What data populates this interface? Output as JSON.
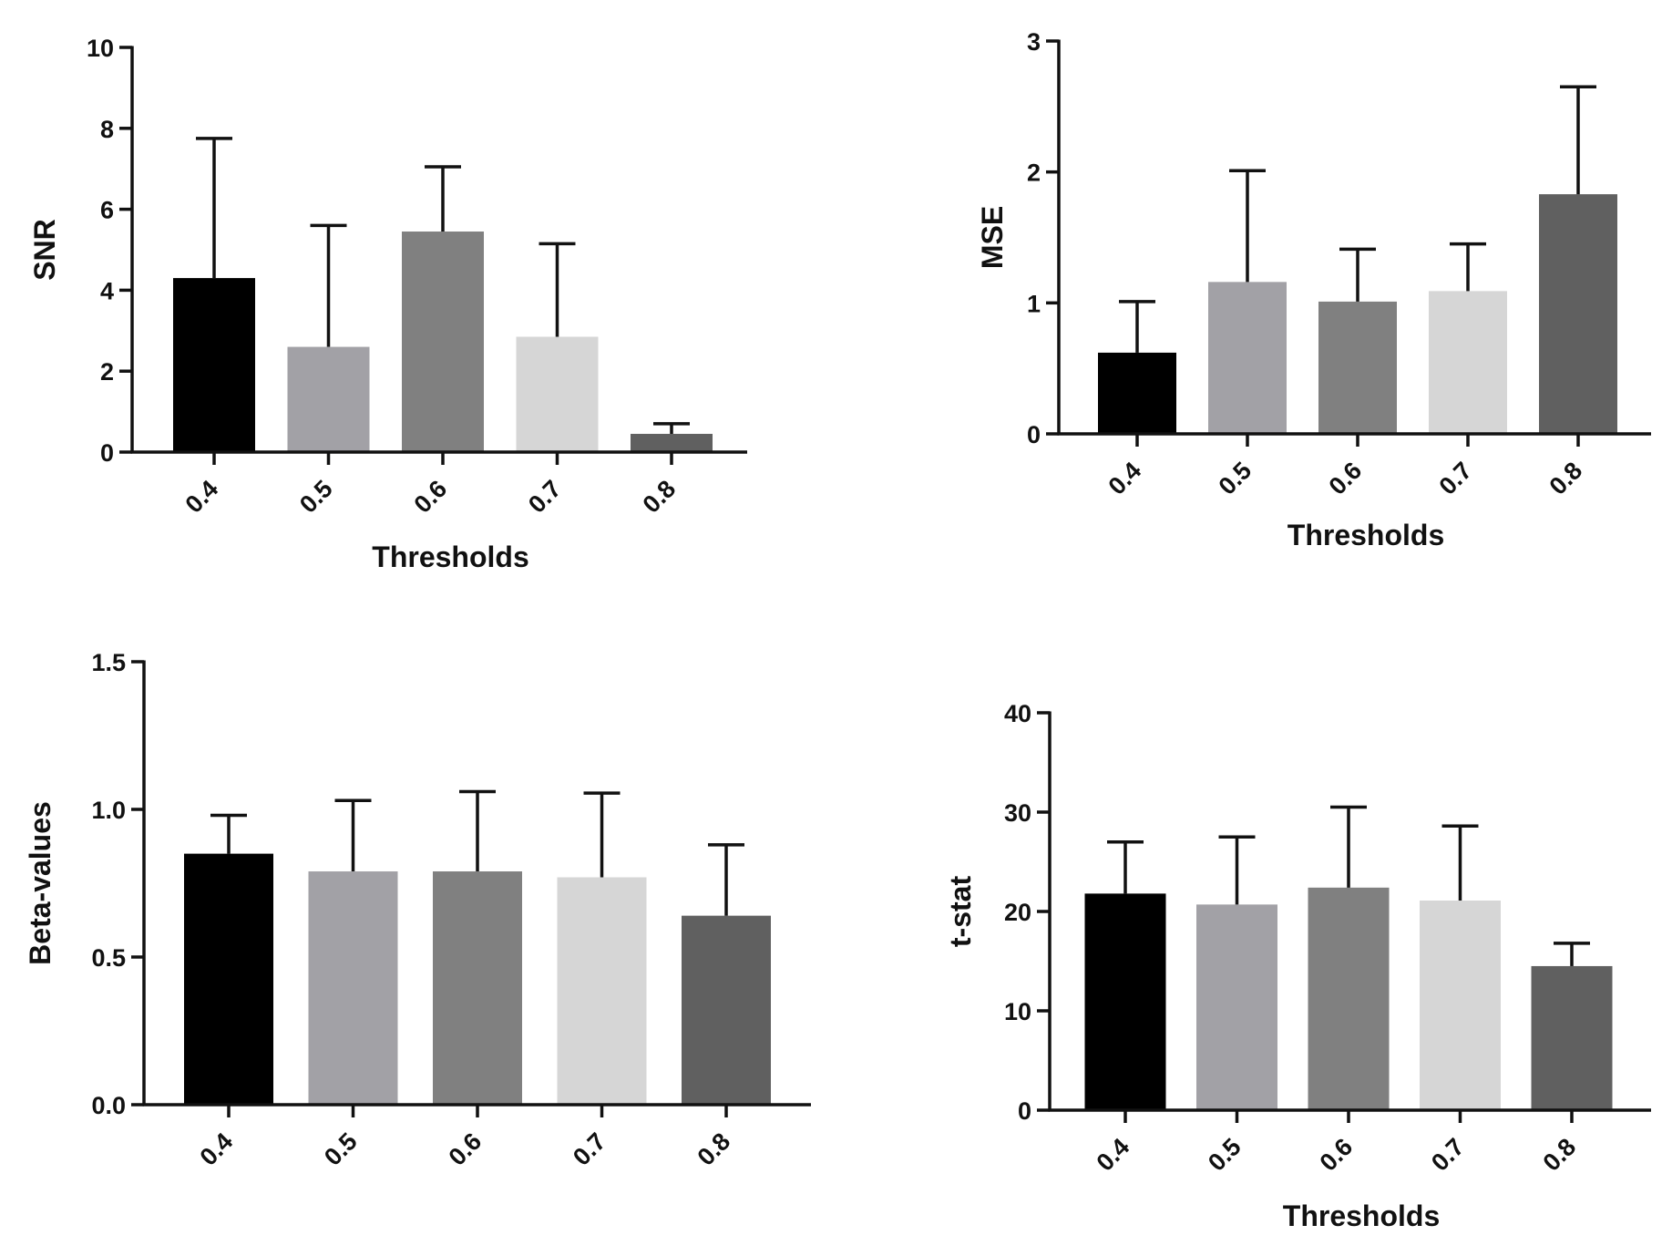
{
  "chart_data": [
    {
      "type": "bar",
      "id": "snr",
      "title": "",
      "xlabel": "Thresholds",
      "ylabel": "SNR",
      "categories": [
        "0.4",
        "0.5",
        "0.6",
        "0.7",
        "0.8"
      ],
      "values": [
        4.3,
        2.6,
        5.45,
        2.85,
        0.45
      ],
      "error_upper": [
        7.75,
        5.6,
        7.05,
        5.15,
        0.7
      ],
      "ylim": [
        0,
        10
      ],
      "yticks": [
        0,
        2,
        4,
        6,
        8,
        10
      ],
      "ytick_labels": [
        "0",
        "2",
        "4",
        "6",
        "8",
        "10"
      ],
      "colors": [
        "#000000",
        "#a2a1a6",
        "#808080",
        "#d6d6d6",
        "#606060"
      ]
    },
    {
      "type": "bar",
      "id": "mse",
      "title": "",
      "xlabel": "Thresholds",
      "ylabel": "MSE",
      "categories": [
        "0.4",
        "0.5",
        "0.6",
        "0.7",
        "0.8"
      ],
      "values": [
        0.62,
        1.16,
        1.01,
        1.09,
        1.83
      ],
      "error_upper": [
        1.01,
        2.01,
        1.41,
        1.45,
        2.65
      ],
      "ylim": [
        0,
        3
      ],
      "yticks": [
        0,
        1,
        2,
        3
      ],
      "ytick_labels": [
        "0",
        "1",
        "2",
        "3"
      ],
      "colors": [
        "#000000",
        "#a2a1a6",
        "#808080",
        "#d6d6d6",
        "#606060"
      ]
    },
    {
      "type": "bar",
      "id": "beta",
      "title": "",
      "xlabel": "",
      "ylabel": "Beta-values",
      "categories": [
        "0.4",
        "0.5",
        "0.6",
        "0.7",
        "0.8"
      ],
      "values": [
        0.85,
        0.79,
        0.79,
        0.77,
        0.64
      ],
      "error_upper": [
        0.98,
        1.03,
        1.06,
        1.055,
        0.88
      ],
      "ylim": [
        0,
        1.5
      ],
      "yticks": [
        0,
        0.5,
        1,
        1.5
      ],
      "ytick_labels": [
        "0.0",
        "0.5",
        "1.0",
        "1.5"
      ],
      "colors": [
        "#000000",
        "#a2a1a6",
        "#808080",
        "#d6d6d6",
        "#606060"
      ]
    },
    {
      "type": "bar",
      "id": "tstat",
      "title": "",
      "xlabel": "Thresholds",
      "ylabel": "t-stat",
      "categories": [
        "0.4",
        "0.5",
        "0.6",
        "0.7",
        "0.8"
      ],
      "values": [
        21.8,
        20.7,
        22.4,
        21.1,
        14.5
      ],
      "error_upper": [
        27.0,
        27.5,
        30.5,
        28.6,
        16.8
      ],
      "ylim": [
        0,
        40
      ],
      "yticks": [
        0,
        10,
        20,
        30,
        40
      ],
      "ytick_labels": [
        "0",
        "10",
        "20",
        "30",
        "40"
      ],
      "colors": [
        "#000000",
        "#a2a1a6",
        "#808080",
        "#d6d6d6",
        "#606060"
      ]
    }
  ]
}
